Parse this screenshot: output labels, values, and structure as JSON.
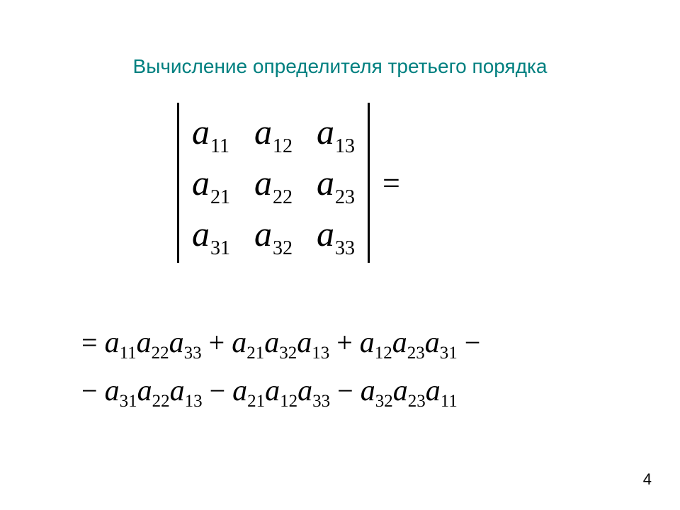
{
  "title": "Вычисление определителя третьего порядка",
  "page_number": "4",
  "a": "a",
  "eq": "=",
  "plus": "+",
  "minus": "−",
  "matrix": {
    "type": "determinant",
    "rows": 3,
    "cols": 3,
    "bar_color": "#000000",
    "entries": [
      [
        "11",
        "12",
        "13"
      ],
      [
        "21",
        "22",
        "23"
      ],
      [
        "31",
        "32",
        "33"
      ]
    ]
  },
  "expansion": {
    "line1": [
      {
        "t": "eq"
      },
      {
        "t": "term",
        "subs": [
          "11",
          "22",
          "33"
        ]
      },
      {
        "t": "plus"
      },
      {
        "t": "term",
        "subs": [
          "21",
          "32",
          "13"
        ]
      },
      {
        "t": "plus"
      },
      {
        "t": "term",
        "subs": [
          "12",
          "23",
          "31"
        ]
      },
      {
        "t": "minus"
      }
    ],
    "line2": [
      {
        "t": "minus_lead"
      },
      {
        "t": "term",
        "subs": [
          "31",
          "22",
          "13"
        ]
      },
      {
        "t": "minus"
      },
      {
        "t": "term",
        "subs": [
          "21",
          "12",
          "33"
        ]
      },
      {
        "t": "minus"
      },
      {
        "t": "term",
        "subs": [
          "32",
          "23",
          "11"
        ]
      }
    ]
  },
  "colors": {
    "title": "#008080",
    "text": "#000000",
    "background": "#ffffff"
  },
  "fonts": {
    "title_family": "Arial",
    "title_size_pt": 21,
    "math_family": "Times New Roman",
    "math_base_size_pt": 38,
    "math_sub_size_pt": 21
  }
}
